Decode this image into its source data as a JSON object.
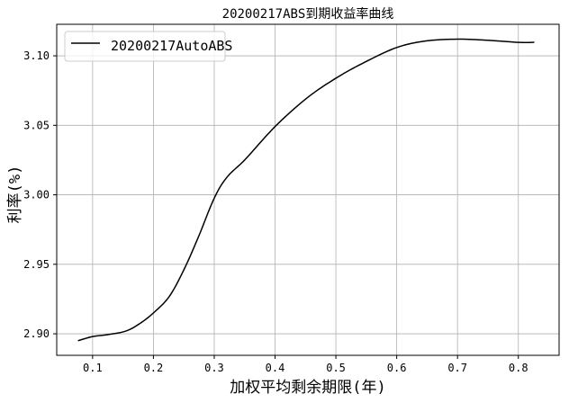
{
  "chart_data": {
    "type": "line",
    "title": "20200217ABS到期收益率曲线",
    "xlabel": "加权平均剩余期限(年)",
    "ylabel": "利率(%)",
    "xlim": [
      0.041,
      0.867
    ],
    "ylim": [
      2.8845,
      3.1227
    ],
    "xticks": [
      0.1,
      0.2,
      0.3,
      0.4,
      0.5,
      0.6,
      0.7,
      0.8
    ],
    "xtick_labels": [
      "0.1",
      "0.2",
      "0.3",
      "0.4",
      "0.5",
      "0.6",
      "0.7",
      "0.8"
    ],
    "yticks": [
      2.9,
      2.95,
      3.0,
      3.05,
      3.1
    ],
    "ytick_labels": [
      "2.90",
      "2.95",
      "3.00",
      "3.05",
      "3.10"
    ],
    "grid": true,
    "legend_position": "top-left",
    "series": [
      {
        "name": "20200217AutoABS",
        "color": "#000000",
        "x": [
          0.076,
          0.1,
          0.125,
          0.155,
          0.178,
          0.2,
          0.226,
          0.25,
          0.274,
          0.3,
          0.321,
          0.351,
          0.4,
          0.452,
          0.5,
          0.547,
          0.6,
          0.648,
          0.699,
          0.75,
          0.8,
          0.826
        ],
        "y": [
          2.895,
          2.898,
          2.8994,
          2.902,
          2.9075,
          2.915,
          2.9268,
          2.946,
          2.9697,
          2.9976,
          3.0127,
          3.0255,
          3.0491,
          3.0695,
          3.0839,
          3.0953,
          3.106,
          3.1107,
          3.112,
          3.1112,
          3.1097,
          3.1097
        ]
      }
    ]
  }
}
